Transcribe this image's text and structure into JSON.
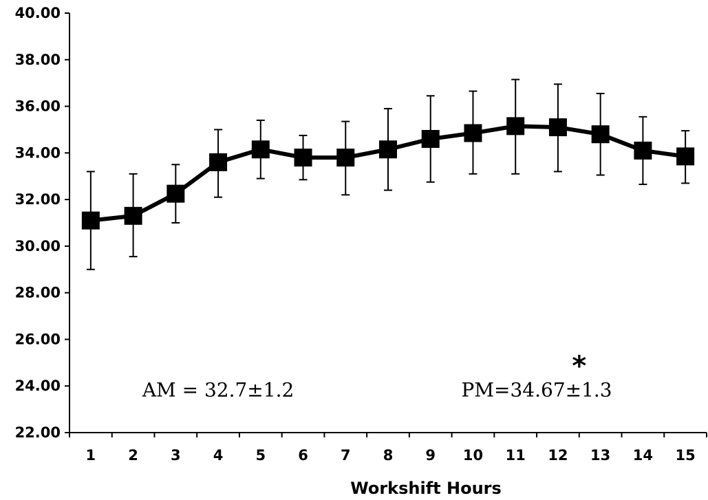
{
  "chart_data": {
    "type": "line",
    "xlabel": "Workshift Hours",
    "ylabel": "",
    "ylim": [
      22,
      40
    ],
    "y_ticks": [
      "22.00",
      "24.00",
      "26.00",
      "28.00",
      "30.00",
      "32.00",
      "34.00",
      "36.00",
      "38.00",
      "40.00"
    ],
    "categories": [
      "1",
      "2",
      "3",
      "4",
      "5",
      "6",
      "7",
      "8",
      "9",
      "10",
      "11",
      "12",
      "13",
      "14",
      "15"
    ],
    "series": [
      {
        "values": [
          31.1,
          31.3,
          32.25,
          33.6,
          34.15,
          33.8,
          33.8,
          34.15,
          34.6,
          34.85,
          35.15,
          35.1,
          34.8,
          34.1,
          33.85
        ],
        "error_upper": [
          33.2,
          33.1,
          33.5,
          35.0,
          35.4,
          34.75,
          35.35,
          35.9,
          36.45,
          36.65,
          37.15,
          36.95,
          36.55,
          35.55,
          34.95
        ],
        "error_lower": [
          29.0,
          29.55,
          31.0,
          32.1,
          32.9,
          32.85,
          32.2,
          32.4,
          32.75,
          33.1,
          33.1,
          33.2,
          33.05,
          32.65,
          32.7
        ]
      }
    ],
    "grid": false,
    "annotations": [
      {
        "text": "AM = 32.7±1.2",
        "x_hour": 4,
        "y_value": 23.85
      },
      {
        "text": "PM=34.67±1.3",
        "x_hour": 11.5,
        "y_value": 23.85
      },
      {
        "text": "*",
        "x_hour": 12.5,
        "y_value": 25.0
      }
    ]
  }
}
